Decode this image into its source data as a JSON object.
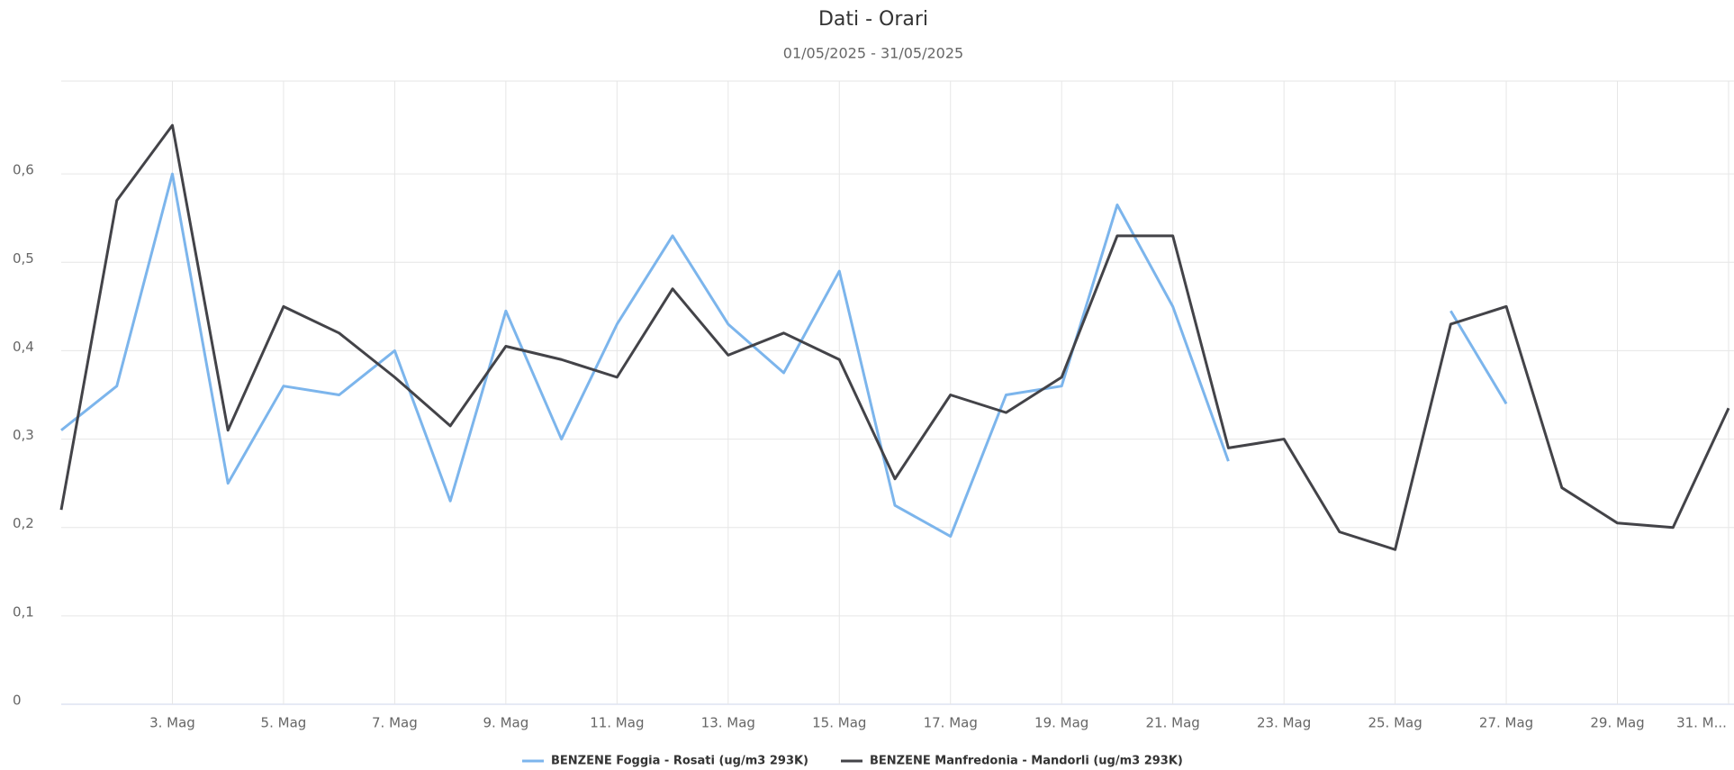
{
  "chart_data": {
    "type": "line",
    "title": "Dati - Orari",
    "subtitle": "01/05/2025 - 31/05/2025",
    "categories": [
      null,
      null,
      "3. Mag",
      null,
      "5. Mag",
      null,
      "7. Mag",
      null,
      "9. Mag",
      null,
      "11. Mag",
      null,
      "13. Mag",
      null,
      "15. Mag",
      null,
      "17. Mag",
      null,
      "19. Mag",
      null,
      "21. Mag",
      null,
      "23. Mag",
      null,
      "25. Mag",
      null,
      "27. Mag",
      null,
      "29. Mag",
      null,
      "31. M..."
    ],
    "series": [
      {
        "name": "BENZENE Foggia - Rosati (ug/m3 293K)",
        "color": "#7cb5ec",
        "values": [
          0.31,
          0.36,
          0.6,
          0.25,
          0.36,
          0.35,
          0.4,
          0.23,
          0.445,
          0.3,
          0.43,
          0.53,
          0.43,
          0.375,
          0.49,
          0.225,
          0.19,
          0.35,
          0.36,
          0.565,
          0.45,
          0.275,
          null,
          null,
          null,
          0.445,
          0.34,
          null,
          null,
          null,
          null
        ]
      },
      {
        "name": "BENZENE Manfredonia - Mandorli (ug/m3 293K)",
        "color": "#434348",
        "values": [
          0.22,
          0.57,
          0.655,
          0.31,
          0.45,
          0.42,
          0.37,
          0.315,
          0.405,
          0.39,
          0.37,
          0.47,
          0.395,
          0.42,
          0.39,
          0.255,
          0.35,
          0.33,
          0.37,
          0.53,
          0.53,
          0.29,
          0.3,
          0.195,
          0.175,
          0.43,
          0.45,
          0.245,
          0.205,
          0.2,
          0.335
        ]
      }
    ],
    "ylim": [
      0,
      0.7
    ],
    "yticks": [
      0,
      {
        "value": 0.1,
        "label": "0,1"
      },
      {
        "value": 0.2,
        "label": "0,2"
      },
      {
        "value": 0.3,
        "label": "0,3"
      },
      {
        "value": 0.4,
        "label": "0,4"
      },
      {
        "value": 0.5,
        "label": "0,5"
      },
      {
        "value": 0.6,
        "label": "0,6"
      }
    ],
    "grid": true
  }
}
